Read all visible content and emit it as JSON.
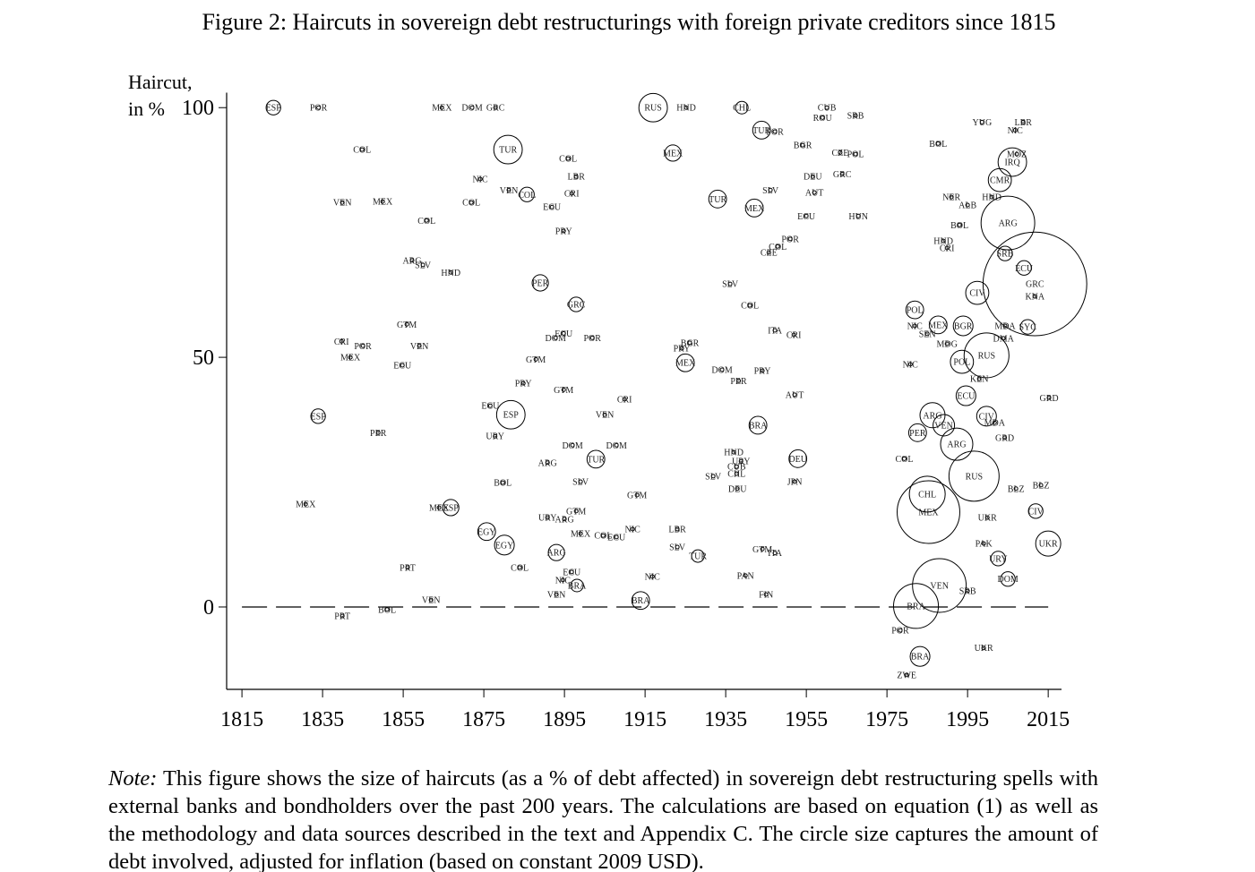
{
  "chart_data": {
    "type": "scatter",
    "title": "Figure 2: Haircuts in sovereign debt restructurings with foreign private creditors since 1815",
    "ylabel": [
      "Haircut,",
      "in %"
    ],
    "xlim": [
      1811.2,
      2018.3
    ],
    "ylim": [
      -16.5,
      103
    ],
    "xticks": [
      1815,
      1835,
      1855,
      1875,
      1895,
      1915,
      1935,
      1955,
      1975,
      1995,
      2015
    ],
    "yticks": [
      0,
      50,
      100
    ],
    "reference_line": 0,
    "color": "#000000",
    "series": [
      {
        "labels": [
          "ESP",
          "POR",
          "COL",
          "VEN",
          "MEX",
          "COL",
          "ARG",
          "SLV",
          "HND",
          "GTM",
          "CRI",
          "POR",
          "VEN",
          "MEX",
          "ECU",
          "ESP",
          "PER",
          "MEX",
          "MEX",
          "ESP",
          "PRT",
          "VEN",
          "PRT",
          "BOL",
          "MEX",
          "DOM",
          "GRC",
          "TUR",
          "COL",
          "NIC",
          "VEN",
          "COL",
          "COL",
          "LBR",
          "CRI",
          "ECU",
          "PRY",
          "PER",
          "GRC",
          "ECU",
          "DOM",
          "POR",
          "GTM",
          "PRY",
          "GTM",
          "ECU",
          "ESP",
          "CRI",
          "VEN",
          "URY",
          "DOM",
          "DOM",
          "ARG",
          "TUR",
          "BOL",
          "SLV",
          "GTM",
          "GTM",
          "URY",
          "ARG",
          "EGY",
          "MEX",
          "COL",
          "ECU",
          "NIC",
          "EGY",
          "ARG",
          "LBR",
          "SLV",
          "TUR",
          "COL",
          "ECU",
          "NIC",
          "BRA",
          "VEN",
          "NIC",
          "BRA",
          "RUS",
          "HND",
          "CHL",
          "CUB",
          "ROU",
          "SRB",
          "TUR",
          "POR",
          "MEX",
          "BGR",
          "CZE",
          "POL",
          "DEU",
          "GRC",
          "SLV",
          "AUT",
          "TUR",
          "MEX",
          "ECU",
          "HUN",
          "POR",
          "COL",
          "CZE",
          "SLV",
          "COL",
          "ITA",
          "CRI",
          "PRY",
          "BGR",
          "MEX",
          "DOM",
          "PRY",
          "PER",
          "AUT",
          "BRA",
          "HND",
          "URY",
          "CUB",
          "CHL",
          "SLV",
          "DEU",
          "DEU",
          "JPN",
          "GTM",
          "ITA",
          "PAN",
          "FIN",
          "YUG",
          "LBR",
          "NIC",
          "BOL",
          "IRQ",
          "MOZ",
          "CMR",
          "NER",
          "HND",
          "ALB",
          "BOL",
          "ARG",
          "HND",
          "CRI",
          "SRB",
          "ECU",
          "GRC",
          "KNA",
          "CIV",
          "POL",
          "MEX",
          "BGR",
          "MDA",
          "SYC",
          "DMA",
          "NIC",
          "SEN",
          "MDG",
          "RUS",
          "POL",
          "NIC",
          "KEN",
          "ECU",
          "GRD",
          "CIV",
          "MDA",
          "ARG",
          "GRD",
          "RUS",
          "BLZ",
          "BLZ",
          "CIV",
          "UKR",
          "UKR",
          "PAK",
          "URY",
          "DOM",
          "SRB",
          "UKR",
          "POR",
          "BRA",
          "ZWE",
          "VEN",
          "MEX",
          "BRA",
          "COL",
          "CHL",
          "ARG",
          "PER",
          "VEN"
        ],
        "x": [
          1822.8,
          1834,
          1844.8,
          1839.9,
          1849.9,
          1860.8,
          1857.2,
          1859.9,
          1866.8,
          1855.9,
          1839.7,
          1845,
          1859,
          1841.9,
          1854.8,
          1833.9,
          1848.8,
          1830.8,
          1863.9,
          1866.8,
          1856.1,
          1861.9,
          1839.9,
          1851,
          1864.6,
          1872.1,
          1877.9,
          1881,
          1895.9,
          1874.1,
          1881.2,
          1885.7,
          1871.9,
          1897.9,
          1896.8,
          1891.9,
          1894.8,
          1889,
          1897.9,
          1894.8,
          1892.8,
          1901.9,
          1887.9,
          1884.8,
          1894.8,
          1876.6,
          1881.7,
          1909.9,
          1905,
          1877.8,
          1897,
          1907.9,
          1890.8,
          1902.8,
          1879.7,
          1899,
          1913,
          1897.9,
          1890.8,
          1895,
          1875.7,
          1899,
          1904.6,
          1907.9,
          1911.9,
          1880.1,
          1893,
          1923,
          1923,
          1928.1,
          1883.9,
          1896.8,
          1894.6,
          1898.1,
          1893,
          1916.8,
          1913.9,
          1917,
          1925.2,
          1939,
          1960.1,
          1959,
          1967.2,
          1943.9,
          1947.2,
          1921.9,
          1954.1,
          1963.4,
          1967.2,
          1956.6,
          1963.9,
          1946.1,
          1957,
          1933,
          1942.1,
          1955,
          1967.9,
          1951,
          1947.9,
          1945.7,
          1936.1,
          1941,
          1947.2,
          1951.9,
          1924.1,
          1926.1,
          1925,
          1934.1,
          1944.1,
          1938.2,
          1952.1,
          1943,
          1937,
          1938.8,
          1937.7,
          1937.7,
          1931.9,
          1937.9,
          1952.9,
          1952.1,
          1944.1,
          1947.2,
          1939.9,
          1945,
          1998.6,
          2008.8,
          2006.8,
          1987.7,
          2006.1,
          2007.2,
          2003,
          1991,
          2001,
          1995,
          1993,
          2005,
          1989,
          1989.9,
          2004.3,
          2009,
          2011.7,
          2011.7,
          1997.4,
          1981.9,
          1987.7,
          1993.9,
          2004.3,
          2009.9,
          2003.9,
          1981.9,
          1985,
          1989.9,
          1999.7,
          1993.6,
          1980.8,
          1997.9,
          1994.6,
          2015.2,
          1999.7,
          2001.7,
          1992.3,
          2004.2,
          1996.6,
          2007,
          2013.2,
          2011.9,
          1999.9,
          2015,
          1999,
          2002.6,
          2005,
          1995,
          1999,
          1978.3,
          1983.2,
          1979.9,
          1988,
          1985.3,
          1982.2,
          1979.3,
          1985,
          1986.3,
          1982.6,
          1989.1
        ],
        "values": [
          100,
          100,
          91.6,
          81,
          81.2,
          77.4,
          69.4,
          68.5,
          67,
          56.6,
          53.2,
          52.3,
          52.3,
          50,
          48.4,
          38.2,
          34.9,
          20.6,
          19.9,
          19.9,
          7.9,
          1.4,
          -1.8,
          -0.5,
          100,
          100,
          100,
          91.6,
          89.8,
          85.7,
          83.5,
          82.6,
          81,
          86.2,
          82.8,
          80.1,
          75.3,
          64.9,
          60.6,
          54.8,
          53.9,
          53.9,
          49.6,
          44.8,
          43.5,
          40.3,
          38.5,
          41.6,
          38.5,
          34.2,
          32.4,
          32.4,
          28.9,
          29.6,
          24.9,
          25.1,
          22.4,
          19.2,
          17.9,
          17.6,
          15.1,
          14.7,
          14.3,
          14,
          15.6,
          12.4,
          10.9,
          15.6,
          12,
          10.2,
          7.9,
          7,
          5.4,
          4.3,
          2.5,
          6.1,
          1.3,
          100,
          100,
          100,
          100,
          98,
          98.4,
          95.5,
          95.2,
          90.9,
          92.5,
          91,
          90.7,
          86.2,
          86.7,
          83.5,
          83,
          81.7,
          79.9,
          78.3,
          78.3,
          73.7,
          72.2,
          71,
          64.7,
          60.4,
          55.4,
          54.5,
          51.8,
          52.9,
          48.9,
          47.5,
          47.3,
          45.3,
          42.5,
          36.4,
          31,
          29.2,
          28.1,
          26.7,
          26.2,
          23.7,
          29.7,
          25.1,
          11.6,
          10.8,
          6.3,
          2.5,
          97.1,
          97.1,
          95.5,
          92.8,
          89.1,
          90.7,
          85.5,
          82.1,
          82.1,
          80.5,
          76.5,
          76.9,
          73.3,
          71.9,
          70.8,
          67.9,
          64.7,
          62.2,
          62.9,
          59.5,
          56.5,
          56.3,
          56.3,
          56.1,
          53.8,
          56.3,
          54.7,
          52.7,
          50.4,
          49.1,
          48.6,
          45.7,
          42.3,
          41.9,
          38.2,
          36.9,
          32.6,
          33.9,
          26.2,
          23.7,
          24.4,
          19.2,
          17.9,
          12.7,
          12.7,
          9.7,
          5.6,
          3.2,
          -8.2,
          -4.7,
          -9.9,
          -13.6,
          4.3,
          19,
          0.2,
          29.7,
          22.6,
          38.4,
          34.9,
          36.4
        ],
        "sizes": [
          6,
          0,
          0,
          0,
          0,
          0,
          0,
          0,
          0,
          0,
          0,
          0,
          0,
          0,
          0,
          6,
          0,
          0,
          0,
          8,
          0,
          0,
          0,
          0,
          0,
          0,
          0,
          31,
          0,
          0,
          0,
          6,
          0,
          0,
          0,
          0,
          0,
          8,
          6,
          0,
          0,
          0,
          0,
          0,
          0,
          0,
          31,
          0,
          0,
          0,
          0,
          0,
          0,
          10,
          0,
          0,
          0,
          0,
          0,
          0,
          10,
          0,
          0,
          0,
          0,
          13,
          8,
          0,
          0,
          4,
          0,
          0,
          0,
          4,
          0,
          0,
          10,
          31,
          0,
          4,
          0,
          0,
          0,
          10,
          0,
          8,
          0,
          0,
          0,
          0,
          0,
          0,
          0,
          10,
          10,
          0,
          0,
          0,
          0,
          0,
          0,
          0,
          0,
          0,
          0,
          0,
          10,
          0,
          0,
          0,
          0,
          10,
          0,
          0,
          0,
          0,
          0,
          0,
          10,
          0,
          0,
          0,
          0,
          0,
          0,
          0,
          0,
          0,
          31,
          0,
          19,
          0,
          0,
          0,
          0,
          125,
          0,
          0,
          6,
          6,
          500,
          0,
          19,
          10,
          10,
          13,
          0,
          6,
          0,
          0,
          0,
          0,
          85,
          19,
          0,
          0,
          13,
          0,
          13,
          0,
          41,
          0,
          108,
          0,
          0,
          6,
          0,
          23,
          0,
          6,
          6,
          0,
          0,
          0,
          13,
          0,
          125,
          174,
          85,
          0,
          52,
          23,
          10,
          16
        ]
      }
    ]
  },
  "note_label": "Note:",
  "note": "This figure shows the size of haircuts (as a % of debt affected) in sovereign debt restructuring spells with external banks and bondholders over the past 200 years. The calculations are based on equation (1) as well as the methodology and data sources described in the text and Appendix C. The circle size captures the amount of debt involved, adjusted for inflation (based on constant 2009 USD)."
}
